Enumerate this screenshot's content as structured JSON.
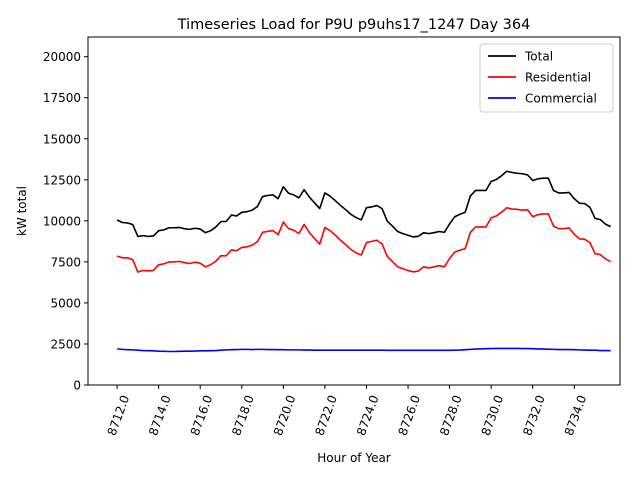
{
  "chart_data": {
    "type": "line",
    "title": "Timeseries Load for P9U p9uhs17_1247  Day 364",
    "xlabel": "Hour of Year",
    "ylabel": "kW total",
    "xlim": [
      8710.6,
      8736.2
    ],
    "ylim": [
      0,
      21200
    ],
    "x_ticks": [
      8712,
      8714,
      8716,
      8718,
      8720,
      8722,
      8724,
      8726,
      8728,
      8730,
      8732,
      8734
    ],
    "x_tick_labels": [
      "8712.0",
      "8714.0",
      "8716.0",
      "8718.0",
      "8720.0",
      "8722.0",
      "8724.0",
      "8726.0",
      "8728.0",
      "8730.0",
      "8732.0",
      "8734.0"
    ],
    "y_ticks": [
      0,
      2500,
      5000,
      7500,
      10000,
      12500,
      15000,
      17500,
      20000
    ],
    "y_tick_labels": [
      "0",
      "2500",
      "5000",
      "7500",
      "10000",
      "12500",
      "15000",
      "17500",
      "20000"
    ],
    "legend_position": "top-right",
    "x_start": 8712,
    "x_step": 0.25,
    "series": [
      {
        "name": "Total",
        "color": "#000000",
        "values": [
          10050,
          9900,
          9870,
          9780,
          9050,
          9100,
          9050,
          9080,
          9400,
          9450,
          9580,
          9580,
          9600,
          9520,
          9480,
          9550,
          9500,
          9280,
          9400,
          9620,
          9960,
          9960,
          10350,
          10300,
          10520,
          10560,
          10650,
          10870,
          11480,
          11550,
          11580,
          11350,
          12080,
          11680,
          11580,
          11400,
          11900,
          11450,
          11100,
          10750,
          11700,
          11500,
          11230,
          10940,
          10680,
          10400,
          10200,
          10060,
          10800,
          10850,
          10930,
          10750,
          9980,
          9680,
          9350,
          9220,
          9120,
          9020,
          9060,
          9280,
          9220,
          9280,
          9350,
          9300,
          9820,
          10250,
          10400,
          10520,
          11520,
          11850,
          11850,
          11850,
          12400,
          12520,
          12750,
          13020,
          12950,
          12900,
          12870,
          12800,
          12460,
          12560,
          12600,
          12600,
          11850,
          11700,
          11700,
          11730,
          11350,
          11070,
          11050,
          10830,
          10150,
          10080,
          9800,
          9650
        ]
      },
      {
        "name": "Residential",
        "color": "#ff0000",
        "values": [
          7850,
          7750,
          7750,
          7630,
          6880,
          6980,
          6950,
          6980,
          7330,
          7380,
          7500,
          7500,
          7530,
          7450,
          7400,
          7480,
          7420,
          7200,
          7330,
          7540,
          7880,
          7870,
          8230,
          8180,
          8380,
          8420,
          8520,
          8720,
          9300,
          9360,
          9400,
          9160,
          9930,
          9530,
          9430,
          9230,
          9780,
          9290,
          8930,
          8580,
          9600,
          9400,
          9130,
          8820,
          8550,
          8260,
          8050,
          7920,
          8680,
          8750,
          8820,
          8600,
          7830,
          7520,
          7200,
          7080,
          6980,
          6890,
          6940,
          7200,
          7130,
          7200,
          7270,
          7200,
          7700,
          8100,
          8220,
          8300,
          9300,
          9630,
          9630,
          9630,
          10180,
          10300,
          10530,
          10800,
          10720,
          10700,
          10650,
          10680,
          10250,
          10380,
          10420,
          10420,
          9680,
          9530,
          9520,
          9570,
          9180,
          8900,
          8880,
          8680,
          8000,
          7950,
          7680,
          7520
        ]
      },
      {
        "name": "Commercial",
        "color": "#0000ff",
        "values": [
          2200,
          2170,
          2150,
          2140,
          2120,
          2100,
          2090,
          2080,
          2060,
          2050,
          2040,
          2040,
          2050,
          2060,
          2060,
          2070,
          2080,
          2080,
          2090,
          2100,
          2120,
          2140,
          2150,
          2160,
          2170,
          2170,
          2160,
          2170,
          2170,
          2160,
          2160,
          2150,
          2150,
          2140,
          2140,
          2140,
          2130,
          2130,
          2120,
          2120,
          2120,
          2120,
          2120,
          2120,
          2120,
          2120,
          2120,
          2120,
          2120,
          2120,
          2120,
          2120,
          2110,
          2110,
          2110,
          2110,
          2110,
          2110,
          2110,
          2110,
          2110,
          2110,
          2110,
          2110,
          2110,
          2120,
          2130,
          2150,
          2170,
          2190,
          2200,
          2210,
          2220,
          2230,
          2230,
          2230,
          2230,
          2230,
          2220,
          2220,
          2210,
          2200,
          2190,
          2180,
          2170,
          2160,
          2160,
          2160,
          2150,
          2140,
          2130,
          2120,
          2120,
          2100,
          2100,
          2090
        ]
      }
    ]
  }
}
